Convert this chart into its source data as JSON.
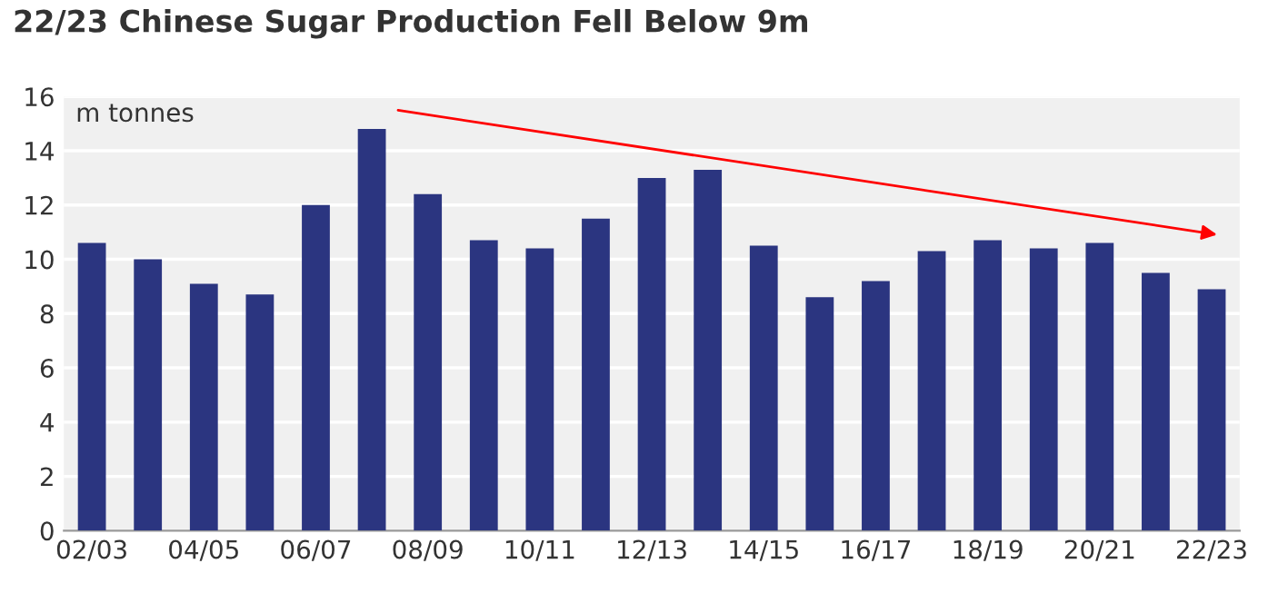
{
  "chart_data": {
    "type": "bar",
    "title": "22/23 Chinese Sugar Production Fell Below 9m",
    "ylabel": "m tonnes",
    "categories": [
      "02/03",
      null,
      "04/05",
      null,
      "06/07",
      null,
      "08/09",
      null,
      "10/11",
      null,
      "12/13",
      null,
      "14/15",
      null,
      "16/17",
      null,
      "18/19",
      null,
      "20/21",
      null,
      "22/23"
    ],
    "values": [
      10.6,
      10.0,
      9.1,
      8.7,
      12.0,
      14.8,
      12.4,
      10.7,
      10.4,
      11.5,
      13.0,
      13.3,
      10.5,
      8.6,
      9.2,
      10.3,
      10.7,
      10.4,
      10.6,
      9.5,
      8.9
    ],
    "color": "#2b3580",
    "ylim": [
      0,
      16
    ],
    "yticks": [
      0,
      2,
      4,
      6,
      8,
      10,
      12,
      14,
      16
    ],
    "grid": "y"
  }
}
